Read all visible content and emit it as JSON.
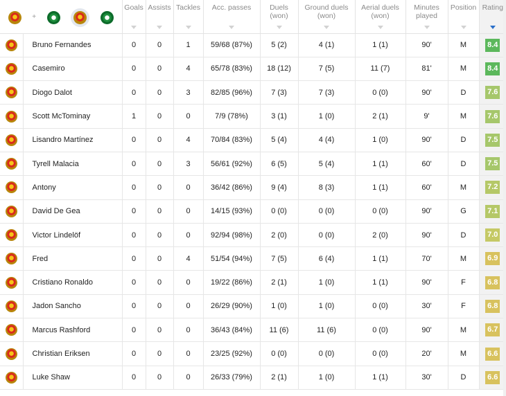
{
  "headers": {
    "goals": "Goals",
    "assists": "Assists",
    "tackles": "Tackles",
    "acc_passes": "Acc. passes",
    "duels": "Duels (won)",
    "ground_duels": "Ground duels (won)",
    "aerial_duels": "Aerial duels (won)",
    "minutes": "Minutes played",
    "position": "Position",
    "rating": "Rating"
  },
  "team_filter": {
    "plus": "+",
    "left_icon": "man-utd-crest-icon",
    "right_icon": "panathinaikos-crest-icon"
  },
  "colors": {
    "rating_dark_green": "#5cb85c",
    "rating_light_green": "#a6c76b",
    "rating_yellow_green": "#c5c965",
    "rating_yellow": "#d8c25e",
    "sort_active": "#2a6fc9"
  },
  "players": [
    {
      "name": "Bruno Fernandes",
      "goals": "0",
      "assists": "0",
      "tackles": "1",
      "acc_passes": "59/68 (87%)",
      "duels": "5 (2)",
      "ground_duels": "4 (1)",
      "aerial_duels": "1 (1)",
      "minutes": "90'",
      "position": "M",
      "rating": "8.4",
      "rating_color": "#5cb85c"
    },
    {
      "name": "Casemiro",
      "goals": "0",
      "assists": "0",
      "tackles": "4",
      "acc_passes": "65/78 (83%)",
      "duels": "18 (12)",
      "ground_duels": "7 (5)",
      "aerial_duels": "11 (7)",
      "minutes": "81'",
      "position": "M",
      "rating": "8.4",
      "rating_color": "#5cb85c"
    },
    {
      "name": "Diogo Dalot",
      "goals": "0",
      "assists": "0",
      "tackles": "3",
      "acc_passes": "82/85 (96%)",
      "duels": "7 (3)",
      "ground_duels": "7 (3)",
      "aerial_duels": "0 (0)",
      "minutes": "90'",
      "position": "D",
      "rating": "7.6",
      "rating_color": "#a6c76b"
    },
    {
      "name": "Scott McTominay",
      "goals": "1",
      "assists": "0",
      "tackles": "0",
      "acc_passes": "7/9 (78%)",
      "duels": "3 (1)",
      "ground_duels": "1 (0)",
      "aerial_duels": "2 (1)",
      "minutes": "9'",
      "position": "M",
      "rating": "7.6",
      "rating_color": "#a6c76b"
    },
    {
      "name": "Lisandro Martínez",
      "goals": "0",
      "assists": "0",
      "tackles": "4",
      "acc_passes": "70/84 (83%)",
      "duels": "5 (4)",
      "ground_duels": "4 (4)",
      "aerial_duels": "1 (0)",
      "minutes": "90'",
      "position": "D",
      "rating": "7.5",
      "rating_color": "#a6c76b"
    },
    {
      "name": "Tyrell Malacia",
      "goals": "0",
      "assists": "0",
      "tackles": "3",
      "acc_passes": "56/61 (92%)",
      "duels": "6 (5)",
      "ground_duels": "5 (4)",
      "aerial_duels": "1 (1)",
      "minutes": "60'",
      "position": "D",
      "rating": "7.5",
      "rating_color": "#a6c76b"
    },
    {
      "name": "Antony",
      "goals": "0",
      "assists": "0",
      "tackles": "0",
      "acc_passes": "36/42 (86%)",
      "duels": "9 (4)",
      "ground_duels": "8 (3)",
      "aerial_duels": "1 (1)",
      "minutes": "60'",
      "position": "M",
      "rating": "7.2",
      "rating_color": "#b5c867"
    },
    {
      "name": "David De Gea",
      "goals": "0",
      "assists": "0",
      "tackles": "0",
      "acc_passes": "14/15 (93%)",
      "duels": "0 (0)",
      "ground_duels": "0 (0)",
      "aerial_duels": "0 (0)",
      "minutes": "90'",
      "position": "G",
      "rating": "7.1",
      "rating_color": "#b5c867"
    },
    {
      "name": "Victor Lindelöf",
      "goals": "0",
      "assists": "0",
      "tackles": "0",
      "acc_passes": "92/94 (98%)",
      "duels": "2 (0)",
      "ground_duels": "0 (0)",
      "aerial_duels": "2 (0)",
      "minutes": "90'",
      "position": "D",
      "rating": "7.0",
      "rating_color": "#c5c965"
    },
    {
      "name": "Fred",
      "goals": "0",
      "assists": "0",
      "tackles": "4",
      "acc_passes": "51/54 (94%)",
      "duels": "7 (5)",
      "ground_duels": "6 (4)",
      "aerial_duels": "1 (1)",
      "minutes": "70'",
      "position": "M",
      "rating": "6.9",
      "rating_color": "#d8c25e"
    },
    {
      "name": "Cristiano Ronaldo",
      "goals": "0",
      "assists": "0",
      "tackles": "0",
      "acc_passes": "19/22 (86%)",
      "duels": "2 (1)",
      "ground_duels": "1 (0)",
      "aerial_duels": "1 (1)",
      "minutes": "90'",
      "position": "F",
      "rating": "6.8",
      "rating_color": "#d8c25e"
    },
    {
      "name": "Jadon Sancho",
      "goals": "0",
      "assists": "0",
      "tackles": "0",
      "acc_passes": "26/29 (90%)",
      "duels": "1 (0)",
      "ground_duels": "1 (0)",
      "aerial_duels": "0 (0)",
      "minutes": "30'",
      "position": "F",
      "rating": "6.8",
      "rating_color": "#d8c25e"
    },
    {
      "name": "Marcus Rashford",
      "goals": "0",
      "assists": "0",
      "tackles": "0",
      "acc_passes": "36/43 (84%)",
      "duels": "11 (6)",
      "ground_duels": "11 (6)",
      "aerial_duels": "0 (0)",
      "minutes": "90'",
      "position": "M",
      "rating": "6.7",
      "rating_color": "#d8c25e"
    },
    {
      "name": "Christian Eriksen",
      "goals": "0",
      "assists": "0",
      "tackles": "0",
      "acc_passes": "23/25 (92%)",
      "duels": "0 (0)",
      "ground_duels": "0 (0)",
      "aerial_duels": "0 (0)",
      "minutes": "20'",
      "position": "M",
      "rating": "6.6",
      "rating_color": "#d8c25e"
    },
    {
      "name": "Luke Shaw",
      "goals": "0",
      "assists": "0",
      "tackles": "0",
      "acc_passes": "26/33 (79%)",
      "duels": "2 (1)",
      "ground_duels": "1 (0)",
      "aerial_duels": "1 (1)",
      "minutes": "30'",
      "position": "D",
      "rating": "6.6",
      "rating_color": "#d8c25e"
    }
  ]
}
